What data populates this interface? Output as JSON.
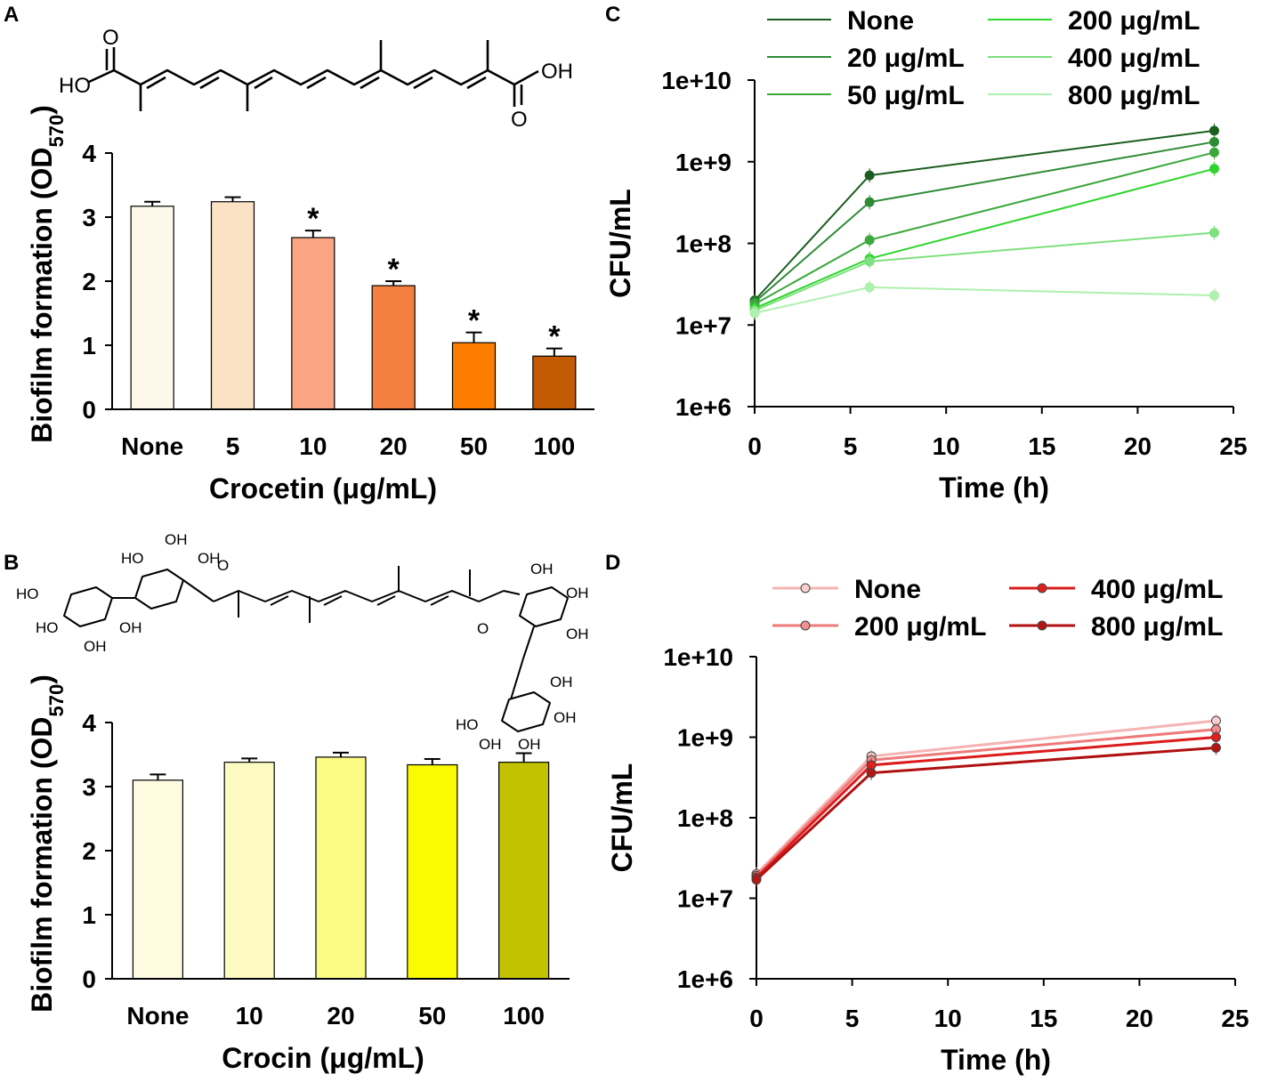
{
  "panels": {
    "a": "A",
    "b": "B",
    "c": "C",
    "d": "D"
  },
  "structures": {
    "crocetin": {
      "left": "HO",
      "right": "OH",
      "o_top": "O",
      "o_bottom": "O"
    },
    "crocin": {
      "oh": "OH",
      "ho": "HO",
      "o": "O"
    }
  },
  "chart_data": [
    {
      "id": "A",
      "type": "bar",
      "title": "",
      "xlabel": "Crocetin (μg/mL)",
      "ylabel": "Biofilm formation (OD570)",
      "ylabel_main": "Biofilm formation (OD",
      "ylabel_sub": "570",
      "ylabel_close": ")",
      "ylim": [
        0,
        4
      ],
      "yticks": [
        "0",
        "1",
        "2",
        "3",
        "4"
      ],
      "categories": [
        "None",
        "5",
        "10",
        "20",
        "50",
        "100"
      ],
      "values": [
        3.17,
        3.24,
        2.68,
        1.93,
        1.04,
        0.83
      ],
      "errors": [
        0.07,
        0.07,
        0.11,
        0.07,
        0.16,
        0.12
      ],
      "significance": [
        "",
        "",
        "*",
        "*",
        "*",
        "*"
      ],
      "colors": [
        "#fdf8e9",
        "#fbe2c4",
        "#f9a583",
        "#f47f3f",
        "#fd7d00",
        "#c25b03"
      ]
    },
    {
      "id": "B",
      "type": "bar",
      "title": "",
      "xlabel": "Crocin (μg/mL)",
      "ylabel": "Biofilm formation (OD570)",
      "ylabel_main": "Biofilm formation (OD",
      "ylabel_sub": "570",
      "ylabel_close": ")",
      "ylim": [
        0,
        4
      ],
      "yticks": [
        "0",
        "1",
        "2",
        "3",
        "4"
      ],
      "categories": [
        "None",
        "10",
        "20",
        "50",
        "100"
      ],
      "values": [
        3.1,
        3.38,
        3.46,
        3.34,
        3.38
      ],
      "errors": [
        0.09,
        0.06,
        0.07,
        0.09,
        0.14
      ],
      "colors": [
        "#fffbe0",
        "#fefbc2",
        "#fcfb83",
        "#fafa00",
        "#c2c200"
      ]
    },
    {
      "id": "C",
      "type": "line",
      "title": "",
      "xlabel": "Time (h)",
      "ylabel": "CFU/mL",
      "x": [
        0,
        6,
        24
      ],
      "xlim": [
        0,
        25
      ],
      "xticks": [
        "0",
        "5",
        "10",
        "15",
        "20",
        "25"
      ],
      "ylim_log10": [
        6,
        10
      ],
      "yticks": [
        "1e+6",
        "1e+7",
        "1e+8",
        "1e+9",
        "1e+10"
      ],
      "legend_position": "top",
      "series": [
        {
          "name": "None",
          "color": "#1b5e20",
          "values": [
            20000000.0,
            680000000.0,
            2400000000.0
          ]
        },
        {
          "name": "20 μg/mL",
          "color": "#2e8b34",
          "values": [
            19000000.0,
            320000000.0,
            1750000000.0
          ]
        },
        {
          "name": "50 μg/mL",
          "color": "#3ca83c",
          "values": [
            18000000.0,
            110000000.0,
            1300000000.0
          ]
        },
        {
          "name": "200 μg/mL",
          "color": "#2ed42e",
          "values": [
            16000000.0,
            65000000.0,
            820000000.0
          ]
        },
        {
          "name": "400 μg/mL",
          "color": "#7ee07e",
          "values": [
            15000000.0,
            60000000.0,
            135000000.0
          ]
        },
        {
          "name": "800 μg/mL",
          "color": "#aef0ae",
          "values": [
            14000000.0,
            29000000.0,
            23000000.0
          ]
        }
      ]
    },
    {
      "id": "D",
      "type": "line",
      "title": "",
      "xlabel": "Time (h)",
      "ylabel": "CFU/mL",
      "x": [
        0,
        6,
        24
      ],
      "xlim": [
        0,
        25
      ],
      "xticks": [
        "0",
        "5",
        "10",
        "15",
        "20",
        "25"
      ],
      "ylim_log10": [
        6,
        10
      ],
      "yticks": [
        "1e+6",
        "1e+7",
        "1e+8",
        "1e+9",
        "1e+10"
      ],
      "legend_position": "top",
      "series": [
        {
          "name": "None",
          "color": "#f5b4b4",
          "marker": "#f8d0d0",
          "values": [
            20000000.0,
            580000000.0,
            1600000000.0
          ]
        },
        {
          "name": "200 μg/mL",
          "color": "#ee7a7a",
          "marker": "#f09090",
          "values": [
            19000000.0,
            520000000.0,
            1250000000.0
          ]
        },
        {
          "name": "400 μg/mL",
          "color": "#dc1c1c",
          "marker": "#e02020",
          "values": [
            18000000.0,
            450000000.0,
            1000000000.0
          ]
        },
        {
          "name": "800 μg/mL",
          "color": "#b01010",
          "marker": "#b51515",
          "values": [
            17000000.0,
            360000000.0,
            740000000.0
          ]
        }
      ]
    }
  ]
}
